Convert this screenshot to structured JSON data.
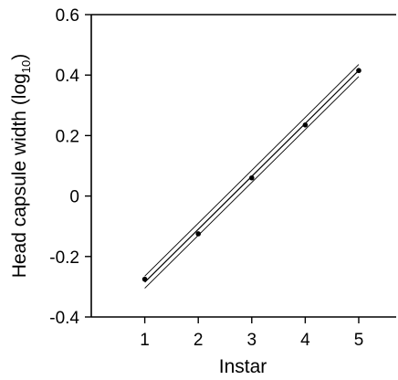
{
  "chart_data": {
    "type": "scatter",
    "xlabel": "Instar",
    "ylabel": {
      "main": "Head capsule width (log",
      "subscript": "10",
      "close": ")"
    },
    "xlim": [
      0,
      5.7
    ],
    "ylim": [
      -0.4,
      0.6
    ],
    "x_ticks": [
      1,
      2,
      3,
      4,
      5
    ],
    "x_tick_labels": [
      "1",
      "2",
      "3",
      "4",
      "5"
    ],
    "y_ticks": [
      0.6,
      0.4,
      0.2,
      0,
      -0.2,
      -0.4
    ],
    "y_tick_labels": [
      "0.6",
      "0.4",
      "0.2",
      "0",
      "-0.2",
      "-0.4"
    ],
    "grid": false,
    "series": [
      {
        "points": [
          {
            "x": 1,
            "y": -0.275
          },
          {
            "x": 2,
            "y": -0.125
          },
          {
            "x": 3,
            "y": 0.06
          },
          {
            "x": 4,
            "y": 0.235
          },
          {
            "x": 5,
            "y": 0.415
          }
        ]
      }
    ],
    "lines": [
      {
        "role": "fit",
        "from": [
          1,
          -0.285
        ],
        "to": [
          5,
          0.415
        ]
      },
      {
        "role": "upper-confidence",
        "from": [
          1,
          -0.265
        ],
        "to": [
          5,
          0.435
        ]
      },
      {
        "role": "lower-confidence",
        "from": [
          1,
          -0.305
        ],
        "to": [
          5,
          0.395
        ]
      }
    ],
    "colors": {
      "axis": "#000000",
      "marker": "#000000",
      "line": "#000000"
    }
  }
}
